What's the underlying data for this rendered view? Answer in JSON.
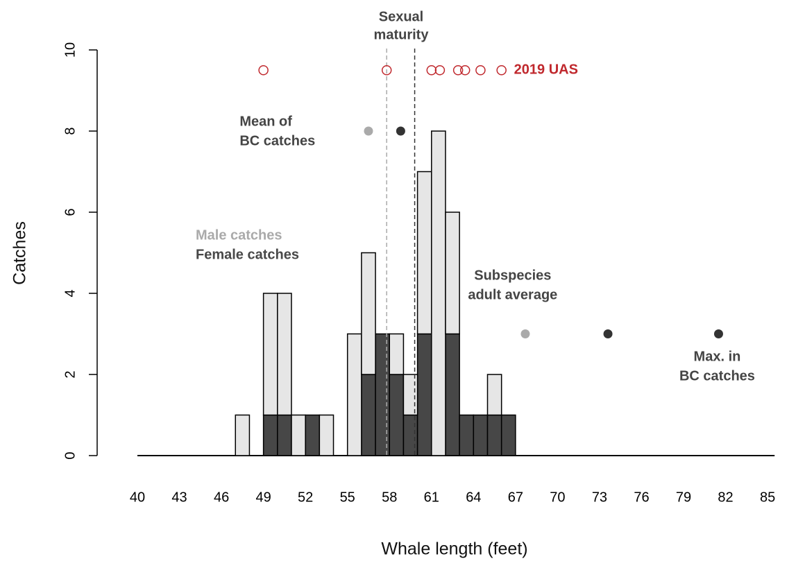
{
  "chart_data": {
    "type": "histogram",
    "x_label": "Whale length (feet)",
    "y_label": "Catches",
    "bins": [
      47,
      48,
      49,
      50,
      51,
      52,
      53,
      54,
      55,
      56,
      57,
      58,
      59,
      60,
      61,
      62,
      63,
      64,
      65,
      66,
      67
    ],
    "series": [
      {
        "name": "Female catches",
        "color": "#474747",
        "values": [
          0,
          0,
          1,
          1,
          0,
          1,
          0,
          0,
          0,
          2,
          3,
          2,
          1,
          3,
          0,
          3,
          1,
          1,
          1,
          1
        ]
      },
      {
        "name": "Male catches",
        "color": "#e6e6e6",
        "values": [
          1,
          0,
          3,
          3,
          1,
          0,
          1,
          0,
          3,
          3,
          0,
          1,
          1,
          4,
          8,
          3,
          0,
          0,
          1,
          0
        ]
      }
    ],
    "legend_colors": [
      "#474747",
      "#aaaaaa"
    ],
    "xlim": [
      40,
      85.5
    ],
    "xticks": [
      40,
      43,
      46,
      49,
      52,
      55,
      58,
      61,
      64,
      67,
      70,
      73,
      76,
      79,
      82,
      85
    ],
    "ylim": [
      0,
      10
    ],
    "yticks": [
      0,
      2,
      4,
      6,
      8,
      10
    ],
    "reference_lines": [
      {
        "x": 57.8,
        "color": "#aaaaaa"
      },
      {
        "x": 59.8,
        "color": "#333333"
      }
    ],
    "reference_label": [
      "Sexual",
      "maturity"
    ],
    "markers": [
      {
        "x": 56.5,
        "y": 8,
        "color": "#aaaaaa"
      },
      {
        "x": 58.8,
        "y": 8,
        "color": "#333333"
      },
      {
        "x": 67.7,
        "y": 3,
        "color": "#aaaaaa"
      },
      {
        "x": 73.6,
        "y": 3,
        "color": "#333333"
      },
      {
        "x": 81.5,
        "y": 3,
        "color": "#333333"
      }
    ],
    "annotations": [
      {
        "lines": [
          "Mean of",
          "BC catches"
        ],
        "x": 47.3,
        "y": 8
      },
      {
        "lines": [
          "Subspecies",
          "adult average"
        ],
        "x": 66.8,
        "y": 4.2
      },
      {
        "lines": [
          "Max. in",
          "BC catches"
        ],
        "x": 81.4,
        "y": 2.2
      }
    ],
    "uas": {
      "name": "2019 UAS",
      "color": "#c0282d",
      "y": 9.5,
      "x": [
        49.0,
        57.8,
        61.0,
        61.6,
        62.9,
        63.4,
        64.5,
        66.0
      ]
    }
  }
}
